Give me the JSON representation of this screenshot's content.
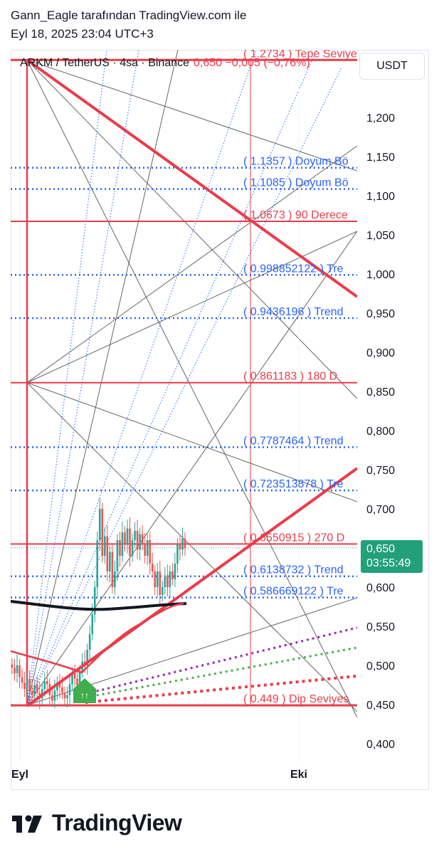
{
  "header": {
    "author_line": "Gann_Eagle tarafından TradingView.com ile",
    "date_line": "Eyl 18, 2025 23:04 UTC+3"
  },
  "symbol": {
    "name": "ARKM / TetherUS · 4sa · Binance",
    "change": "0,650  −0,005 (−0,76%)"
  },
  "currency": "USDT",
  "last_price": {
    "value": "0,650",
    "countdown": "03:55:49"
  },
  "brand": {
    "name": "TradingView"
  },
  "colors": {
    "red": "#e83d4b",
    "blue": "#2962ff",
    "green": "#22a079",
    "purple": "#9c27b0",
    "lightgreen": "#4caf50",
    "dark": "#131722"
  },
  "chart_data": {
    "type": "candlestick",
    "title": "ARKM / TetherUS · 4sa · Binance",
    "ylim": [
      0.375,
      1.29
    ],
    "y_ticks": [
      "0,400",
      "0,450",
      "0,500",
      "0,550",
      "0,600",
      "0,650",
      "0,700",
      "0,750",
      "0,800",
      "0,850",
      "0,900",
      "0,950",
      "1,000",
      "1,050",
      "1,100",
      "1,150",
      "1,200"
    ],
    "x_ticks": [
      "Eyl",
      "Eki"
    ],
    "levels": [
      {
        "label": "( 1.2734 ) Tepe Seviye",
        "value": 1.2734,
        "color": "red",
        "style": "solid"
      },
      {
        "label": "( 1.1357 ) Doyum Bö",
        "value": 1.1357,
        "color": "blue",
        "style": "dotted"
      },
      {
        "label": "( 1.1085 ) Doyum Bö",
        "value": 1.1085,
        "color": "blue",
        "style": "dotted"
      },
      {
        "label": "( 1.0673 ) 90 Derece",
        "value": 1.0673,
        "color": "red",
        "style": "solid"
      },
      {
        "label": "( 0.998852122 ) Tre",
        "value": 0.998852122,
        "color": "blue",
        "style": "dotted"
      },
      {
        "label": "( 0.9436196 ) Trend",
        "value": 0.9436196,
        "color": "blue",
        "style": "dotted"
      },
      {
        "label": "( 0.861183   ) 180 D",
        "value": 0.861183,
        "color": "red",
        "style": "solid"
      },
      {
        "label": "( 0.7787464 ) Trend",
        "value": 0.7787464,
        "color": "blue",
        "style": "dotted"
      },
      {
        "label": "( 0.723513878 ) Tre",
        "value": 0.723513878,
        "color": "blue",
        "style": "dotted"
      },
      {
        "label": "( 0.6550915 ) 270 D",
        "value": 0.6550915,
        "color": "red",
        "style": "solid"
      },
      {
        "label": "( 0.6138732 ) Trend",
        "value": 0.6138732,
        "color": "blue",
        "style": "dotted"
      },
      {
        "label": "( 0.586669122 ) Tre",
        "value": 0.586669122,
        "color": "blue",
        "style": "dotted"
      },
      {
        "label": "( 0.449 ) Dip Seviyes",
        "value": 0.449,
        "color": "red",
        "style": "solid"
      }
    ],
    "candles_close": [
      0.497,
      0.49,
      0.5,
      0.485,
      0.478,
      0.47,
      0.483,
      0.468,
      0.462,
      0.475,
      0.465,
      0.458,
      0.47,
      0.48,
      0.476,
      0.462,
      0.455,
      0.468,
      0.478,
      0.472,
      0.465,
      0.458,
      0.462,
      0.476,
      0.49,
      0.483,
      0.475,
      0.492,
      0.505,
      0.5,
      0.52,
      0.54,
      0.565,
      0.6,
      0.66,
      0.7,
      0.64,
      0.665,
      0.62,
      0.645,
      0.6,
      0.62,
      0.66,
      0.64,
      0.67,
      0.655,
      0.675,
      0.64,
      0.66,
      0.672,
      0.648,
      0.668,
      0.655,
      0.64,
      0.66,
      0.63,
      0.62,
      0.6,
      0.62,
      0.59,
      0.6,
      0.615,
      0.6,
      0.62,
      0.61,
      0.63,
      0.655,
      0.648,
      0.662,
      0.65
    ],
    "pattern_marker": "↑↑"
  }
}
